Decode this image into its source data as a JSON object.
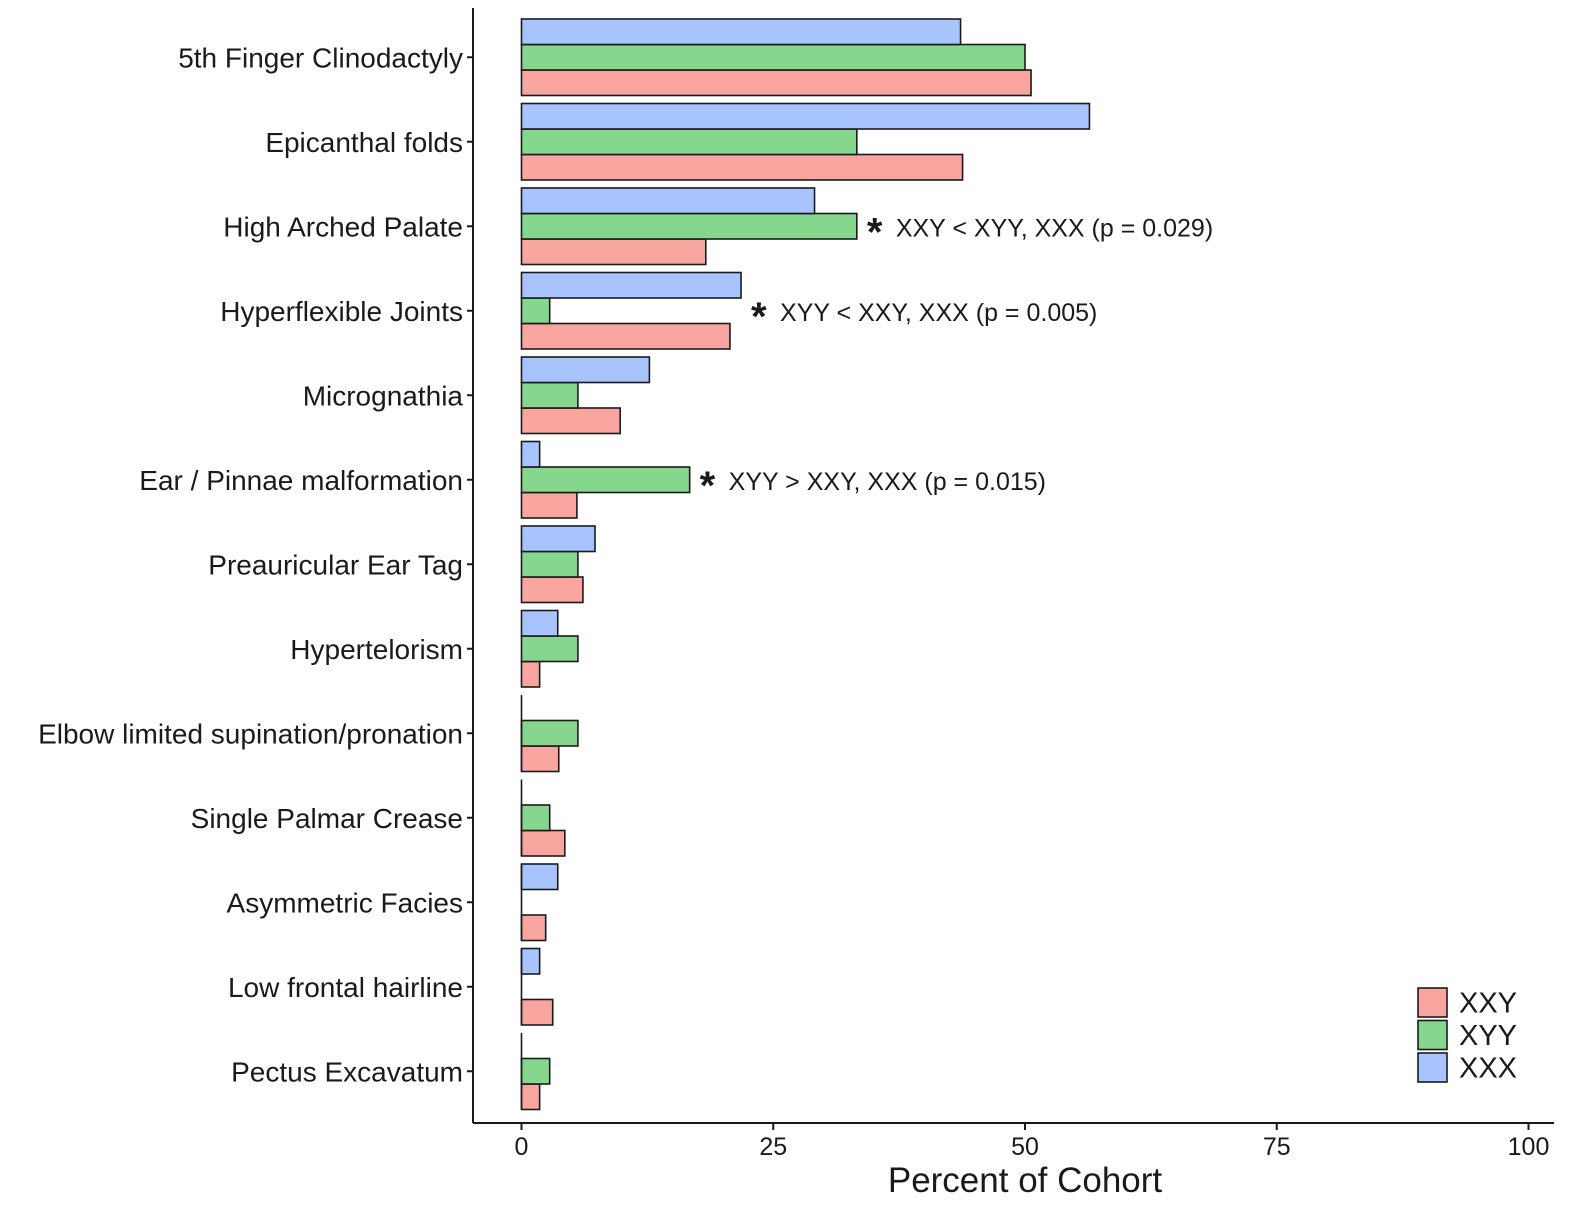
{
  "chart_data": {
    "type": "bar",
    "orientation": "horizontal",
    "title": "",
    "xlabel": "Percent of Cohort",
    "ylabel": "",
    "xlim": [
      0,
      100
    ],
    "xticks": [
      0,
      25,
      50,
      75,
      100
    ],
    "grid": false,
    "legend_position": "bottom-right",
    "categories": [
      "5th Finger Clinodactyly",
      "Epicanthal folds",
      "High Arched Palate",
      "Hyperflexible Joints",
      "Micrognathia",
      "Ear / Pinnae malformation",
      "Preauricular Ear Tag",
      "Hypertelorism",
      "Elbow limited supination/pronation",
      "Single Palmar Crease",
      "Asymmetric Facies",
      "Low frontal hairline",
      "Pectus Excavatum"
    ],
    "series": [
      {
        "name": "XXY",
        "color": "#F8A5A0",
        "values": [
          50.6,
          43.8,
          18.3,
          20.7,
          9.8,
          5.5,
          6.1,
          1.8,
          3.7,
          4.3,
          2.4,
          3.1,
          1.8
        ]
      },
      {
        "name": "XYY",
        "color": "#87D68E",
        "values": [
          50.0,
          33.3,
          33.3,
          2.8,
          5.6,
          16.7,
          5.6,
          5.6,
          5.6,
          2.8,
          0,
          0,
          2.8
        ]
      },
      {
        "name": "XXX",
        "color": "#A8C4FF",
        "values": [
          43.6,
          56.4,
          29.1,
          21.8,
          12.7,
          1.8,
          7.3,
          3.6,
          0,
          0,
          3.6,
          1.8,
          0
        ]
      }
    ],
    "annotations": [
      {
        "category": "High Arched Palate",
        "marker": "*",
        "text": "XXY < XYY, XXX (p = 0.029)"
      },
      {
        "category": "Hyperflexible Joints",
        "marker": "*",
        "text": "XYY < XXY, XXX (p = 0.005)"
      },
      {
        "category": "Ear / Pinnae malformation",
        "marker": "*",
        "text": "XYY > XXY, XXX (p = 0.015)"
      }
    ]
  }
}
